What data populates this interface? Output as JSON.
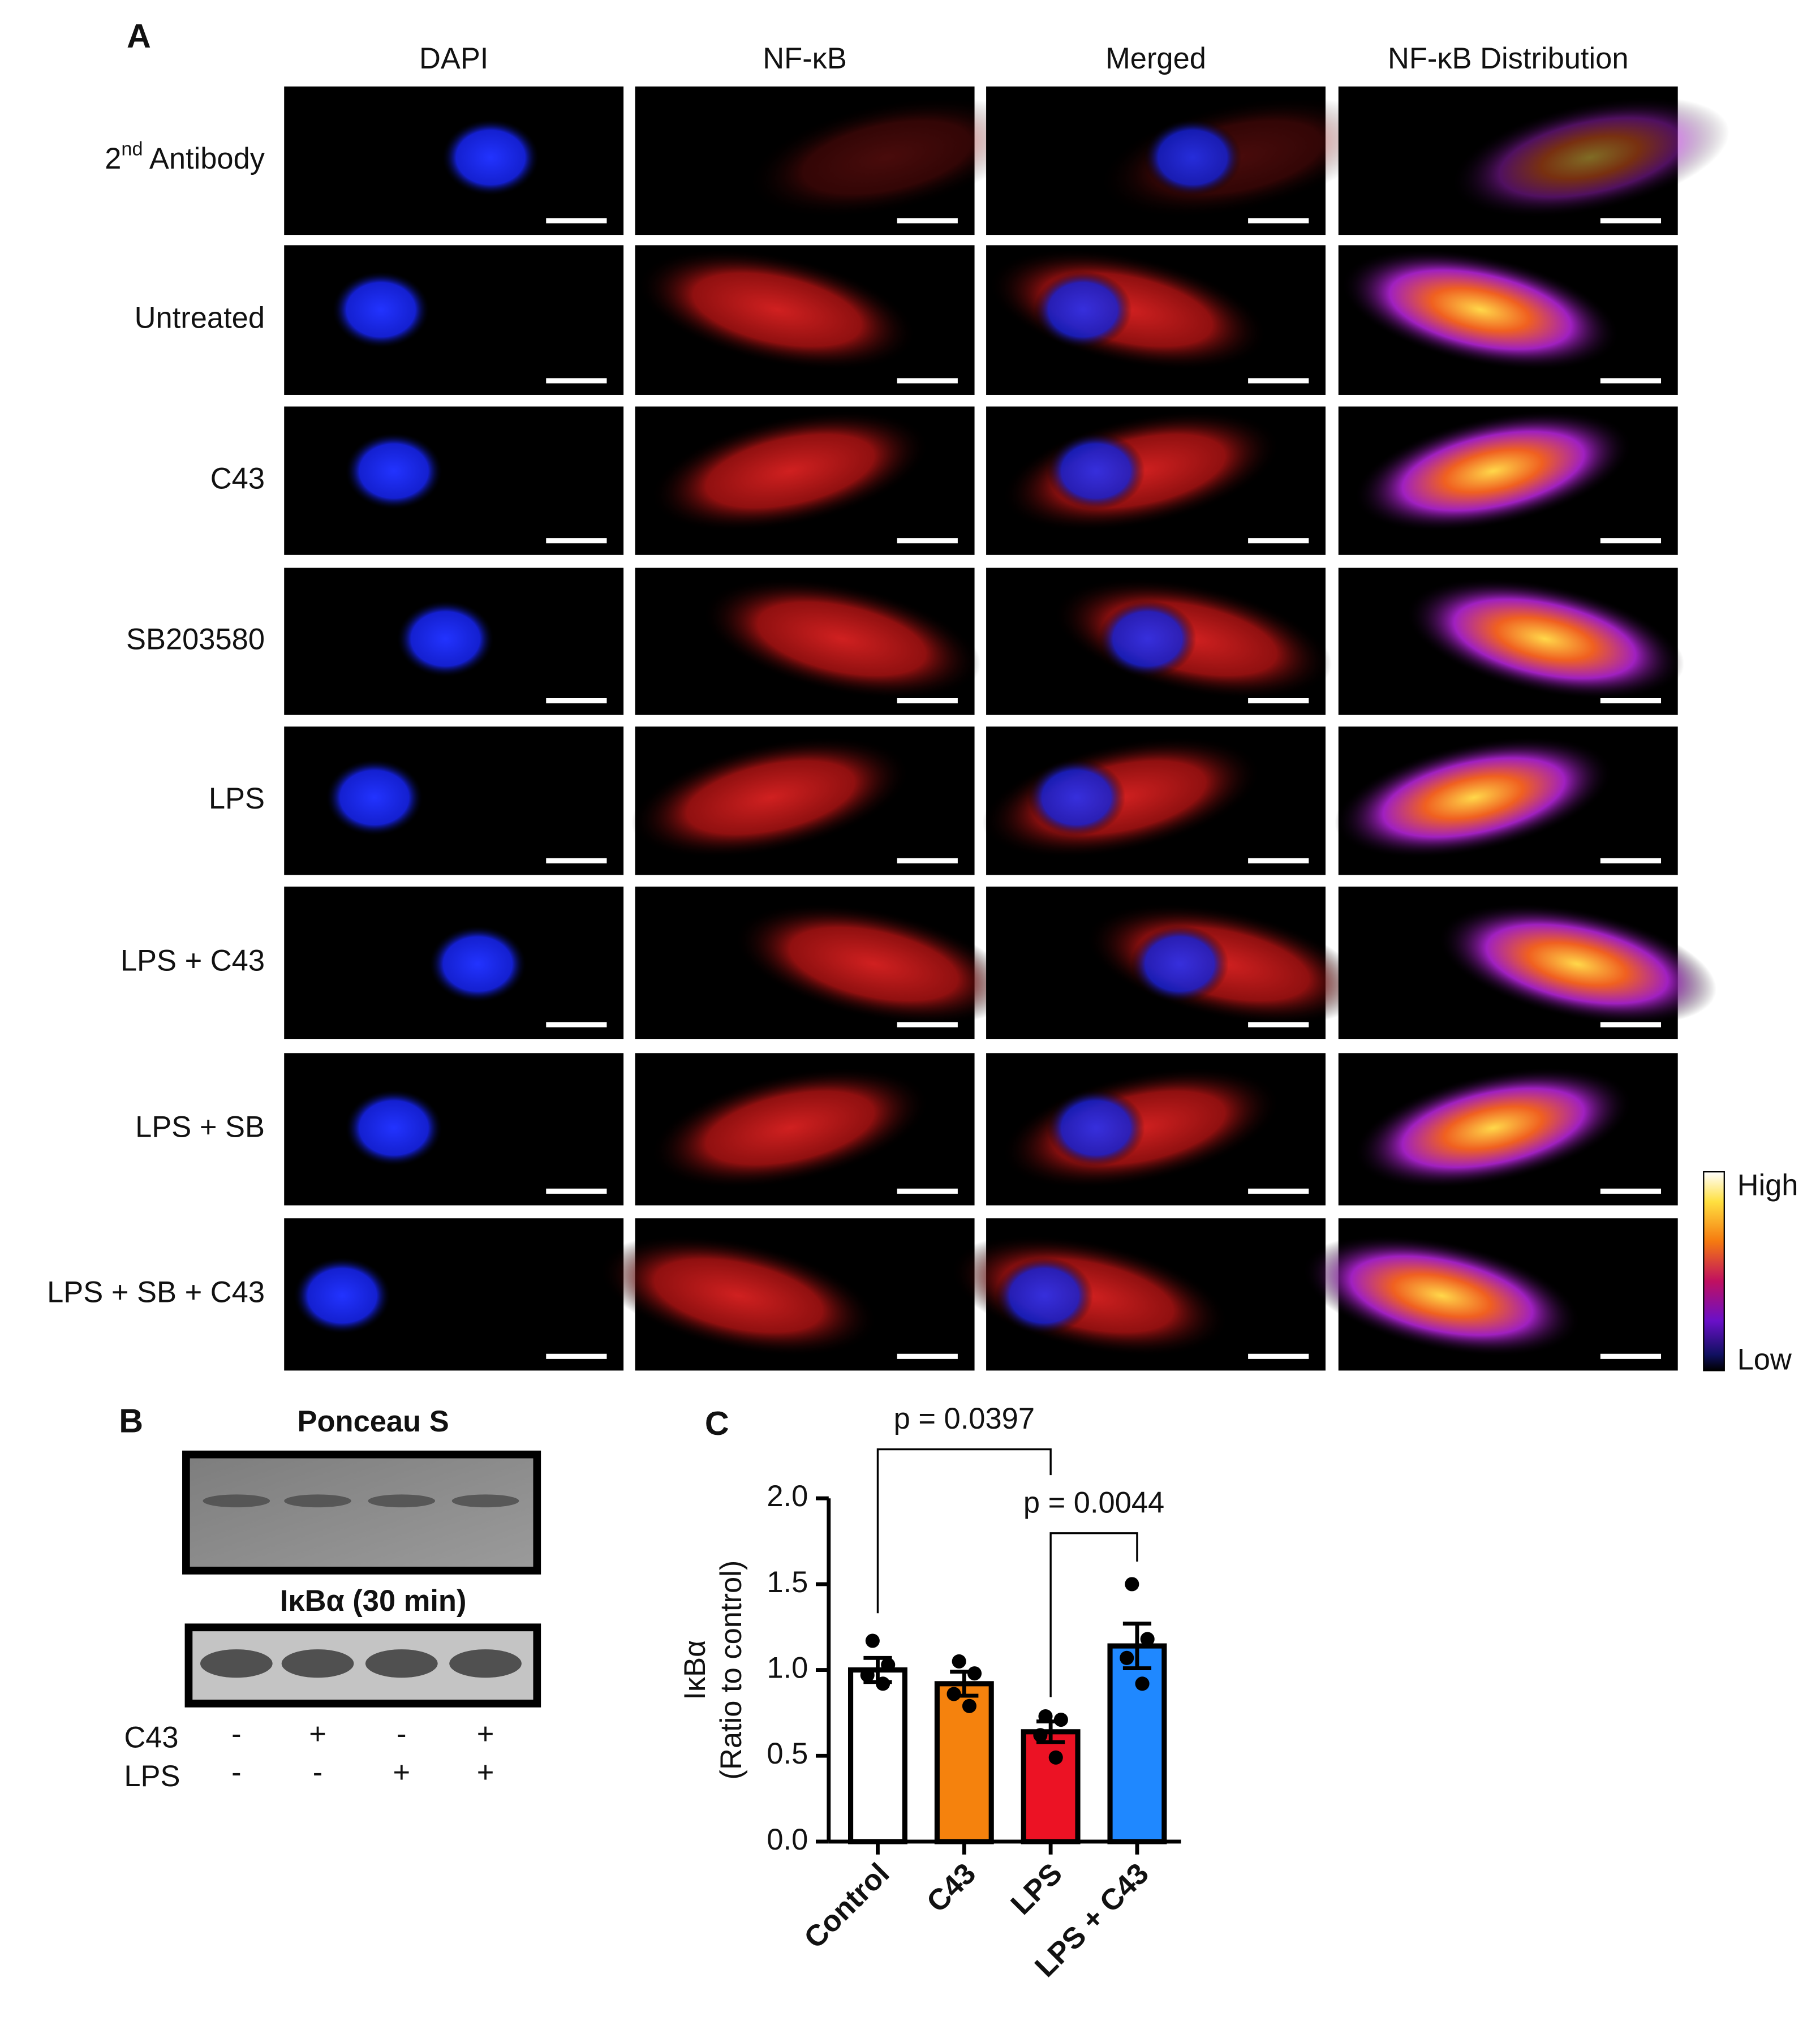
{
  "panel_a": {
    "label": "A",
    "columns": [
      "DAPI",
      "NF-κB",
      "Merged",
      "NF-κB Distribution"
    ],
    "rows": [
      {
        "number": "2",
        "superscript": "nd",
        "text": "Antibody"
      },
      "Untreated",
      "C43",
      "SB203580",
      "LPS",
      "LPS + C43",
      "LPS + SB",
      "LPS + SB + C43"
    ],
    "colorbar": {
      "high": "High",
      "low": "Low"
    }
  },
  "panel_b": {
    "label": "B",
    "blots": [
      "Ponceau S",
      "IκBα (30 min)"
    ],
    "conditions": [
      {
        "name": "C43",
        "signs": [
          "-",
          "+",
          "-",
          "+"
        ]
      },
      {
        "name": "LPS",
        "signs": [
          "-",
          "-",
          "+",
          "+"
        ]
      }
    ]
  },
  "chart_data": {
    "type": "bar",
    "panel_label": "C",
    "categories": [
      "Control",
      "C43",
      "LPS",
      "LPS + C43"
    ],
    "values": [
      1.0,
      0.92,
      0.64,
      1.14
    ],
    "errors": [
      0.07,
      0.07,
      0.06,
      0.13
    ],
    "points": [
      [
        1.17,
        1.03,
        0.97,
        0.92
      ],
      [
        1.05,
        0.98,
        0.86,
        0.79
      ],
      [
        0.73,
        0.71,
        0.62,
        0.49
      ],
      [
        1.5,
        1.18,
        1.07,
        0.92
      ]
    ],
    "colors": [
      "#ffffff",
      "#f5820d",
      "#ec1224",
      "#1f88ff"
    ],
    "ylabel": [
      "IκBα",
      "(Ratio to control)"
    ],
    "ylim": [
      0,
      2
    ],
    "yticks": [
      {
        "value": 0,
        "label": "0.0"
      },
      {
        "value": 0.5,
        "label": "0.5"
      },
      {
        "value": 1,
        "label": "1.0"
      },
      {
        "value": 1.5,
        "label": "1.5"
      },
      {
        "value": 2,
        "label": "2.0"
      }
    ],
    "annotations": [
      {
        "text": "p = 0.0397",
        "between": [
          "Control",
          "LPS"
        ]
      },
      {
        "text": "p = 0.0044",
        "between": [
          "LPS",
          "LPS + C43"
        ]
      }
    ]
  }
}
